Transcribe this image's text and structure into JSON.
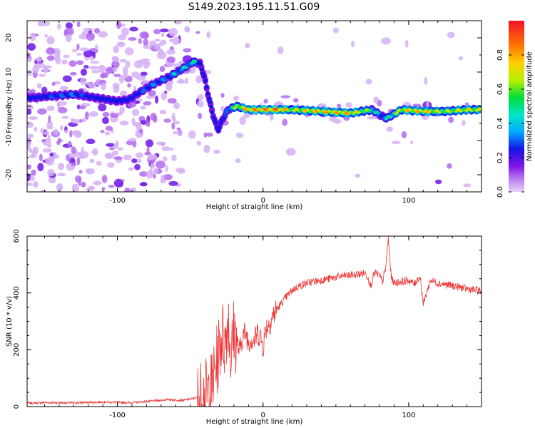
{
  "title": "S149.2023.195.11.51.G09",
  "chart_data": [
    {
      "type": "heatmap",
      "xlabel": "Height of straight line (km)",
      "ylabel": "Frequency (Hz)",
      "xlim": [
        -162,
        150
      ],
      "ylim": [
        -25,
        25
      ],
      "xticks": [
        -100,
        0,
        100
      ],
      "xticklabels": [
        "-100",
        "0",
        "100"
      ],
      "yticks": [
        -20,
        -10,
        0,
        10,
        20
      ],
      "yticklabels": [
        "-20",
        "-10",
        "0",
        "10",
        "20"
      ],
      "colorbar": {
        "label": "Normalized spectral amplitude",
        "range": [
          0,
          1
        ],
        "ticks": [
          0.0,
          0.2,
          0.4,
          0.6,
          0.8
        ],
        "ticklabels": [
          "0.0",
          "0.2",
          "0.4",
          "0.6",
          "0.8"
        ]
      },
      "ridge": {
        "x": [
          -158,
          -145,
          -130,
          -115,
          -100,
          -92,
          -85,
          -75,
          -65,
          -55,
          -48,
          -43,
          -40,
          -37,
          -34,
          -31,
          -28,
          -24,
          -18,
          -10,
          0,
          10,
          20,
          40,
          60,
          75,
          80,
          85,
          95,
          110,
          125,
          140,
          150
        ],
        "y": [
          2.5,
          3.0,
          3.5,
          2.5,
          1.5,
          2.0,
          4.0,
          6.5,
          8.5,
          11.0,
          13.0,
          12.5,
          8.0,
          2.0,
          -3.0,
          -7.0,
          -4.0,
          -1.0,
          0.0,
          -1.0,
          -1.0,
          -1.0,
          -1.0,
          -1.5,
          -2.0,
          -1.0,
          -2.5,
          -3.5,
          -1.0,
          -1.5,
          -1.5,
          -1.0,
          -1.0
        ],
        "amplitude": [
          0.3,
          0.4,
          0.45,
          0.3,
          0.25,
          0.3,
          0.4,
          0.45,
          0.45,
          0.5,
          0.55,
          0.4,
          0.3,
          0.3,
          0.25,
          0.2,
          0.25,
          0.5,
          0.7,
          0.9,
          0.9,
          0.95,
          0.75,
          0.85,
          0.85,
          0.6,
          0.45,
          0.5,
          0.8,
          0.85,
          0.7,
          0.8,
          0.75
        ]
      }
    },
    {
      "type": "line",
      "xlabel": "Height of straight line (km)",
      "ylabel": "SNR (10 * v/v)",
      "xlim": [
        -162,
        150
      ],
      "ylim": [
        0,
        600
      ],
      "xticks": [
        -100,
        0,
        100
      ],
      "xticklabels": [
        "-100",
        "0",
        "100"
      ],
      "yticks": [
        0,
        200,
        400,
        600
      ],
      "yticklabels": [
        "0",
        "200",
        "400",
        "600"
      ],
      "color": "#ee3333",
      "series": [
        {
          "x": [
            -162,
            -150,
            -130,
            -110,
            -90,
            -75,
            -65,
            -55,
            -48,
            -44,
            -40,
            -36,
            -33,
            -30,
            -28,
            -26,
            -24,
            -22,
            -20,
            -18,
            -16,
            -14,
            -12,
            -10,
            -8,
            -6,
            -4,
            -2,
            0,
            2,
            4,
            6,
            8,
            10,
            12,
            15,
            20,
            25,
            30,
            35,
            40,
            45,
            50,
            55,
            60,
            65,
            70,
            72,
            74,
            76,
            78,
            80,
            82,
            84,
            86,
            88,
            90,
            95,
            100,
            104,
            106,
            108,
            110,
            115,
            120,
            125,
            130,
            135,
            140,
            145,
            150
          ],
          "y": [
            12,
            14,
            13,
            16,
            14,
            20,
            25,
            22,
            28,
            35,
            40,
            60,
            120,
            210,
            260,
            220,
            320,
            170,
            270,
            230,
            190,
            250,
            260,
            230,
            240,
            230,
            260,
            250,
            210,
            280,
            290,
            310,
            330,
            345,
            360,
            380,
            410,
            425,
            435,
            440,
            445,
            450,
            455,
            460,
            462,
            465,
            470,
            455,
            425,
            465,
            470,
            460,
            440,
            480,
            590,
            455,
            435,
            440,
            445,
            430,
            450,
            455,
            360,
            445,
            435,
            430,
            425,
            420,
            415,
            410,
            405
          ]
        }
      ]
    }
  ]
}
